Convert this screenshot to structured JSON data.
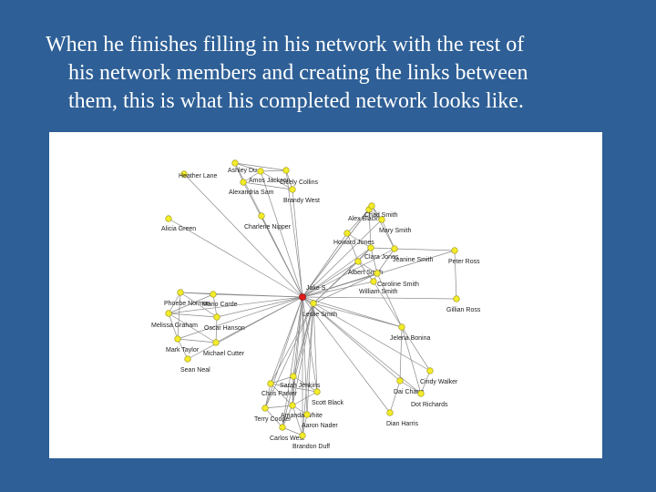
{
  "slide": {
    "caption_lines": [
      "When he finishes filling in his network with the rest of",
      "his network members and creating the links between",
      "them,  this is what his completed network looks like."
    ]
  },
  "network": {
    "colors": {
      "node": "#f2ec2a",
      "node_stroke": "#9a8f10",
      "center": "#e01b1b",
      "edge": "#8a8a8a"
    },
    "nodes": [
      {
        "id": "ego",
        "label": "Jake S",
        "center": true
      },
      {
        "id": "heather",
        "label": "Heather Lane"
      },
      {
        "id": "ashley",
        "label": "Ashley Du"
      },
      {
        "id": "amos",
        "label": "Amos Jackson"
      },
      {
        "id": "cicely",
        "label": "Cicely Collins"
      },
      {
        "id": "alexandria",
        "label": "Alexandria Sam"
      },
      {
        "id": "brandy",
        "label": "Brandy West"
      },
      {
        "id": "charlene",
        "label": "Charlene Nipper"
      },
      {
        "id": "alicia",
        "label": "Alicia Green"
      },
      {
        "id": "alex",
        "label": "Alex Black"
      },
      {
        "id": "chad",
        "label": "Chad Smith"
      },
      {
        "id": "mary",
        "label": "Mary Smith"
      },
      {
        "id": "howard",
        "label": "Howard Jones"
      },
      {
        "id": "clara",
        "label": "Clara Jones"
      },
      {
        "id": "jeanine",
        "label": "Jeanine Smith"
      },
      {
        "id": "albert",
        "label": "Albert Smith"
      },
      {
        "id": "caroline",
        "label": "Caroline Smith"
      },
      {
        "id": "william",
        "label": "William Smith"
      },
      {
        "id": "peter",
        "label": "Peter Ross"
      },
      {
        "id": "gillian",
        "label": "Gillian Ross"
      },
      {
        "id": "phoebe",
        "label": "Phoebe Norman"
      },
      {
        "id": "carde",
        "label": "Mario Carde"
      },
      {
        "id": "melissa",
        "label": "Melissa Graham"
      },
      {
        "id": "oscar",
        "label": "Oscar Hanson"
      },
      {
        "id": "mark",
        "label": "Mark Taylor"
      },
      {
        "id": "michael",
        "label": "Michael Cutter"
      },
      {
        "id": "sean",
        "label": "Sean Neal"
      },
      {
        "id": "leslie",
        "label": "Leslie Smith"
      },
      {
        "id": "jelena",
        "label": "Jelena Bonina"
      },
      {
        "id": "cindy",
        "label": "Cindy Walker"
      },
      {
        "id": "dai",
        "label": "Dai Chang"
      },
      {
        "id": "dot",
        "label": "Dot Richards"
      },
      {
        "id": "dian",
        "label": "Dian Harris"
      },
      {
        "id": "sarah",
        "label": "Sarah Jenkins"
      },
      {
        "id": "chris",
        "label": "Chris Parker"
      },
      {
        "id": "scott",
        "label": "Scott Black"
      },
      {
        "id": "amanda",
        "label": "Amanda White"
      },
      {
        "id": "terry",
        "label": "Terry Cooper"
      },
      {
        "id": "aaron",
        "label": "Aaron Nader"
      },
      {
        "id": "carlos",
        "label": "Carlos West"
      },
      {
        "id": "brandon",
        "label": "Brandon Duff"
      }
    ],
    "edges": [
      [
        "ego",
        "heather"
      ],
      [
        "ego",
        "ashley"
      ],
      [
        "ego",
        "amos"
      ],
      [
        "ego",
        "cicely"
      ],
      [
        "ego",
        "alexandria"
      ],
      [
        "ego",
        "brandy"
      ],
      [
        "ego",
        "charlene"
      ],
      [
        "ego",
        "alicia"
      ],
      [
        "ashley",
        "amos"
      ],
      [
        "ashley",
        "cicely"
      ],
      [
        "ashley",
        "alexandria"
      ],
      [
        "amos",
        "cicely"
      ],
      [
        "amos",
        "brandy"
      ],
      [
        "alexandria",
        "brandy"
      ],
      [
        "cicely",
        "brandy"
      ],
      [
        "amos",
        "alexandria"
      ],
      [
        "ego",
        "alex"
      ],
      [
        "ego",
        "chad"
      ],
      [
        "ego",
        "mary"
      ],
      [
        "ego",
        "howard"
      ],
      [
        "ego",
        "clara"
      ],
      [
        "ego",
        "jeanine"
      ],
      [
        "ego",
        "albert"
      ],
      [
        "ego",
        "caroline"
      ],
      [
        "ego",
        "william"
      ],
      [
        "alex",
        "chad"
      ],
      [
        "alex",
        "mary"
      ],
      [
        "chad",
        "mary"
      ],
      [
        "alex",
        "howard"
      ],
      [
        "howard",
        "clara"
      ],
      [
        "clara",
        "jeanine"
      ],
      [
        "clara",
        "albert"
      ],
      [
        "albert",
        "caroline"
      ],
      [
        "caroline",
        "william"
      ],
      [
        "jeanine",
        "caroline"
      ],
      [
        "howard",
        "albert"
      ],
      [
        "alex",
        "clara"
      ],
      [
        "chad",
        "jeanine"
      ],
      [
        "mary",
        "jeanine"
      ],
      [
        "albert",
        "william"
      ],
      [
        "clara",
        "caroline"
      ],
      [
        "ego",
        "peter"
      ],
      [
        "ego",
        "gillian"
      ],
      [
        "peter",
        "gillian"
      ],
      [
        "jeanine",
        "peter"
      ],
      [
        "ego",
        "phoebe"
      ],
      [
        "ego",
        "carde"
      ],
      [
        "ego",
        "melissa"
      ],
      [
        "ego",
        "oscar"
      ],
      [
        "ego",
        "mark"
      ],
      [
        "ego",
        "michael"
      ],
      [
        "ego",
        "sean"
      ],
      [
        "phoebe",
        "carde"
      ],
      [
        "phoebe",
        "melissa"
      ],
      [
        "melissa",
        "mark"
      ],
      [
        "mark",
        "michael"
      ],
      [
        "oscar",
        "michael"
      ],
      [
        "phoebe",
        "oscar"
      ],
      [
        "carde",
        "oscar"
      ],
      [
        "melissa",
        "oscar"
      ],
      [
        "mark",
        "sean"
      ],
      [
        "carde",
        "melissa"
      ],
      [
        "melissa",
        "michael"
      ],
      [
        "phoebe",
        "mark"
      ],
      [
        "ego",
        "leslie"
      ],
      [
        "ego",
        "jelena"
      ],
      [
        "ego",
        "cindy"
      ],
      [
        "ego",
        "dai"
      ],
      [
        "ego",
        "dot"
      ],
      [
        "ego",
        "dian"
      ],
      [
        "jelena",
        "dai"
      ],
      [
        "jelena",
        "cindy"
      ],
      [
        "dai",
        "dot"
      ],
      [
        "dai",
        "dian"
      ],
      [
        "cindy",
        "dot"
      ],
      [
        "jelena",
        "dot"
      ],
      [
        "william",
        "jelena"
      ],
      [
        "caroline",
        "jelena"
      ],
      [
        "ego",
        "sarah"
      ],
      [
        "ego",
        "chris"
      ],
      [
        "ego",
        "scott"
      ],
      [
        "ego",
        "amanda"
      ],
      [
        "ego",
        "terry"
      ],
      [
        "ego",
        "aaron"
      ],
      [
        "ego",
        "carlos"
      ],
      [
        "ego",
        "brandon"
      ],
      [
        "sarah",
        "chris"
      ],
      [
        "sarah",
        "scott"
      ],
      [
        "chris",
        "terry"
      ],
      [
        "chris",
        "amanda"
      ],
      [
        "amanda",
        "aaron"
      ],
      [
        "terry",
        "carlos"
      ],
      [
        "carlos",
        "brandon"
      ],
      [
        "amanda",
        "brandon"
      ],
      [
        "scott",
        "amanda"
      ],
      [
        "sarah",
        "amanda"
      ],
      [
        "terry",
        "amanda"
      ],
      [
        "aaron",
        "brandon"
      ],
      [
        "chris",
        "scott"
      ],
      [
        "carlos",
        "amanda"
      ],
      [
        "leslie",
        "sarah"
      ],
      [
        "leslie",
        "scott"
      ],
      [
        "leslie",
        "chris"
      ],
      [
        "leslie",
        "amanda"
      ],
      [
        "leslie",
        "terry"
      ],
      [
        "leslie",
        "carlos"
      ],
      [
        "leslie",
        "brandon"
      ],
      [
        "leslie",
        "aaron"
      ],
      [
        "leslie",
        "clara"
      ],
      [
        "leslie",
        "albert"
      ],
      [
        "leslie",
        "caroline"
      ],
      [
        "leslie",
        "jelena"
      ]
    ]
  }
}
